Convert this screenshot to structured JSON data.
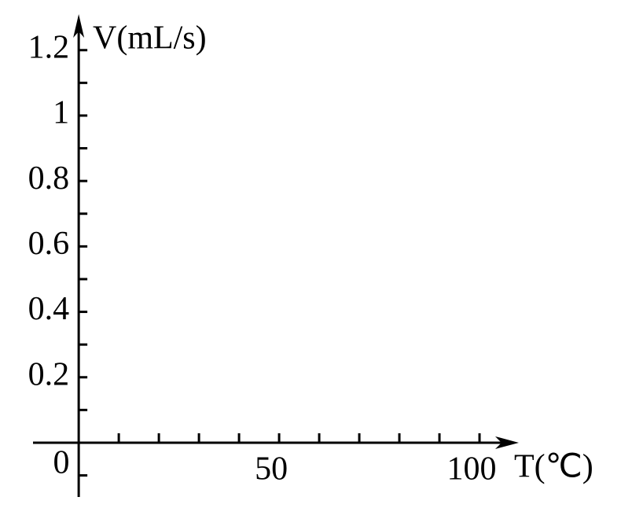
{
  "chart_data": {
    "type": "line",
    "x_label": "T(℃)",
    "y_label": "V(mL/s)",
    "origin_label": "0",
    "xlim": [
      -11.4,
      109.8
    ],
    "ylim": [
      -0.166,
      1.31
    ],
    "xticks": [
      50,
      100
    ],
    "xminor_ticks": [
      10,
      20,
      30,
      40,
      50,
      60,
      70,
      80,
      90,
      100
    ],
    "yticks": [
      0.2,
      0.4,
      0.6,
      0.8,
      1,
      1.2
    ],
    "yminor_ticks": [
      -0.1,
      0.1,
      0.2,
      0.3,
      0.4,
      0.5,
      0.6,
      0.7,
      0.8,
      0.9,
      1,
      1.1,
      1.2
    ],
    "color": "#000000"
  }
}
